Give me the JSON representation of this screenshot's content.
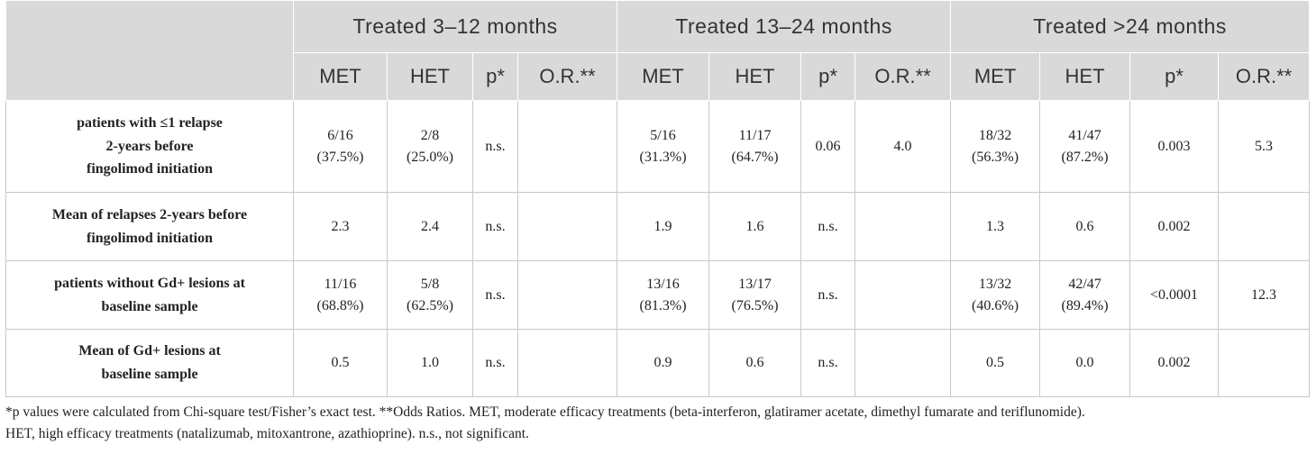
{
  "table": {
    "groups": [
      "Treated 3–12 months",
      "Treated 13–24 months",
      "Treated >24 months"
    ],
    "subheaders": [
      "MET",
      "HET",
      "p*",
      "O.R.**",
      "MET",
      "HET",
      "p*",
      "O.R.**",
      "MET",
      "HET",
      "p*",
      "O.R.**"
    ],
    "rows": [
      {
        "label_lines": [
          "patients with ≤1 relapse",
          "2-years before",
          "fingolimod initiation"
        ],
        "cells": [
          [
            "6/16",
            "(37.5%)"
          ],
          [
            "2/8",
            "(25.0%)"
          ],
          [
            "n.s."
          ],
          [
            ""
          ],
          [
            "5/16",
            "(31.3%)"
          ],
          [
            "11/17",
            "(64.7%)"
          ],
          [
            "0.06"
          ],
          [
            "4.0"
          ],
          [
            "18/32",
            "(56.3%)"
          ],
          [
            "41/47",
            "(87.2%)"
          ],
          [
            "0.003"
          ],
          [
            "5.3"
          ]
        ]
      },
      {
        "label_lines": [
          "Mean of relapses 2-years before",
          "fingolimod initiation"
        ],
        "cells": [
          [
            "2.3"
          ],
          [
            "2.4"
          ],
          [
            "n.s."
          ],
          [
            ""
          ],
          [
            "1.9"
          ],
          [
            "1.6"
          ],
          [
            "n.s."
          ],
          [
            ""
          ],
          [
            "1.3"
          ],
          [
            "0.6"
          ],
          [
            "0.002"
          ],
          [
            ""
          ]
        ]
      },
      {
        "label_lines": [
          "patients without Gd+ lesions at",
          "baseline sample"
        ],
        "cells": [
          [
            "11/16",
            "(68.8%)"
          ],
          [
            "5/8",
            "(62.5%)"
          ],
          [
            "n.s."
          ],
          [
            ""
          ],
          [
            "13/16",
            "(81.3%)"
          ],
          [
            "13/17",
            "(76.5%)"
          ],
          [
            "n.s."
          ],
          [
            ""
          ],
          [
            "13/32",
            "(40.6%)"
          ],
          [
            "42/47",
            "(89.4%)"
          ],
          [
            "<0.0001"
          ],
          [
            "12.3"
          ]
        ]
      },
      {
        "label_lines": [
          "Mean of Gd+ lesions at",
          "baseline sample"
        ],
        "cells": [
          [
            "0.5"
          ],
          [
            "1.0"
          ],
          [
            "n.s."
          ],
          [
            ""
          ],
          [
            "0.9"
          ],
          [
            "0.6"
          ],
          [
            "n.s."
          ],
          [
            ""
          ],
          [
            "0.5"
          ],
          [
            "0.0"
          ],
          [
            "0.002"
          ],
          [
            ""
          ]
        ]
      }
    ]
  },
  "footnote": {
    "line1": "*p values were calculated from Chi-square test/Fisher’s exact test. **Odds Ratios. MET, moderate efficacy treatments (beta-interferon, glatiramer acetate, dimethyl fumarate and teriflunomide).",
    "line2": "HET, high efficacy treatments (natalizumab, mitoxantrone, azathioprine). n.s., not significant."
  }
}
